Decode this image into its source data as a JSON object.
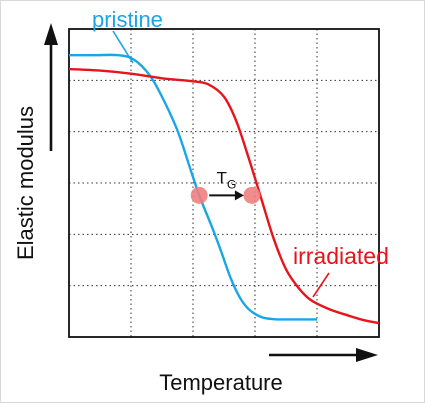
{
  "chart_data": {
    "type": "line",
    "xlabel": "Temperature",
    "ylabel": "Elastic modulus",
    "xlim": [
      0,
      10
    ],
    "ylim": [
      0,
      10
    ],
    "grid": true,
    "series": [
      {
        "name": "pristine",
        "color": "#1aa6e6",
        "x": [
          0.0,
          0.8,
          1.6,
          2.1,
          2.6,
          3.0,
          3.5,
          3.9,
          4.2,
          4.6,
          4.9,
          5.2,
          5.5,
          5.8,
          6.2,
          6.6,
          7.0,
          8.0
        ],
        "y": [
          9.15,
          9.15,
          9.15,
          9.0,
          8.5,
          7.8,
          6.7,
          5.5,
          4.6,
          3.6,
          2.8,
          1.95,
          1.3,
          0.9,
          0.65,
          0.58,
          0.57,
          0.57
        ]
      },
      {
        "name": "irradiated",
        "color": "#e8141c",
        "x": [
          0.0,
          1.0,
          2.0,
          3.0,
          4.0,
          4.5,
          5.0,
          5.4,
          5.8,
          6.2,
          6.6,
          7.0,
          7.4,
          7.8,
          8.4,
          9.0,
          9.5,
          10.0
        ],
        "y": [
          8.7,
          8.65,
          8.55,
          8.4,
          8.3,
          8.2,
          7.8,
          7.0,
          5.8,
          4.5,
          3.2,
          2.2,
          1.6,
          1.2,
          0.9,
          0.7,
          0.55,
          0.45
        ]
      }
    ],
    "annotations": {
      "tg_label": "T",
      "tg_subscript": "G",
      "arrow_from": {
        "x": 4.2,
        "y": 4.6
      },
      "arrow_to": {
        "x": 5.9,
        "y": 4.6
      },
      "marker_color": "#f08080"
    }
  }
}
